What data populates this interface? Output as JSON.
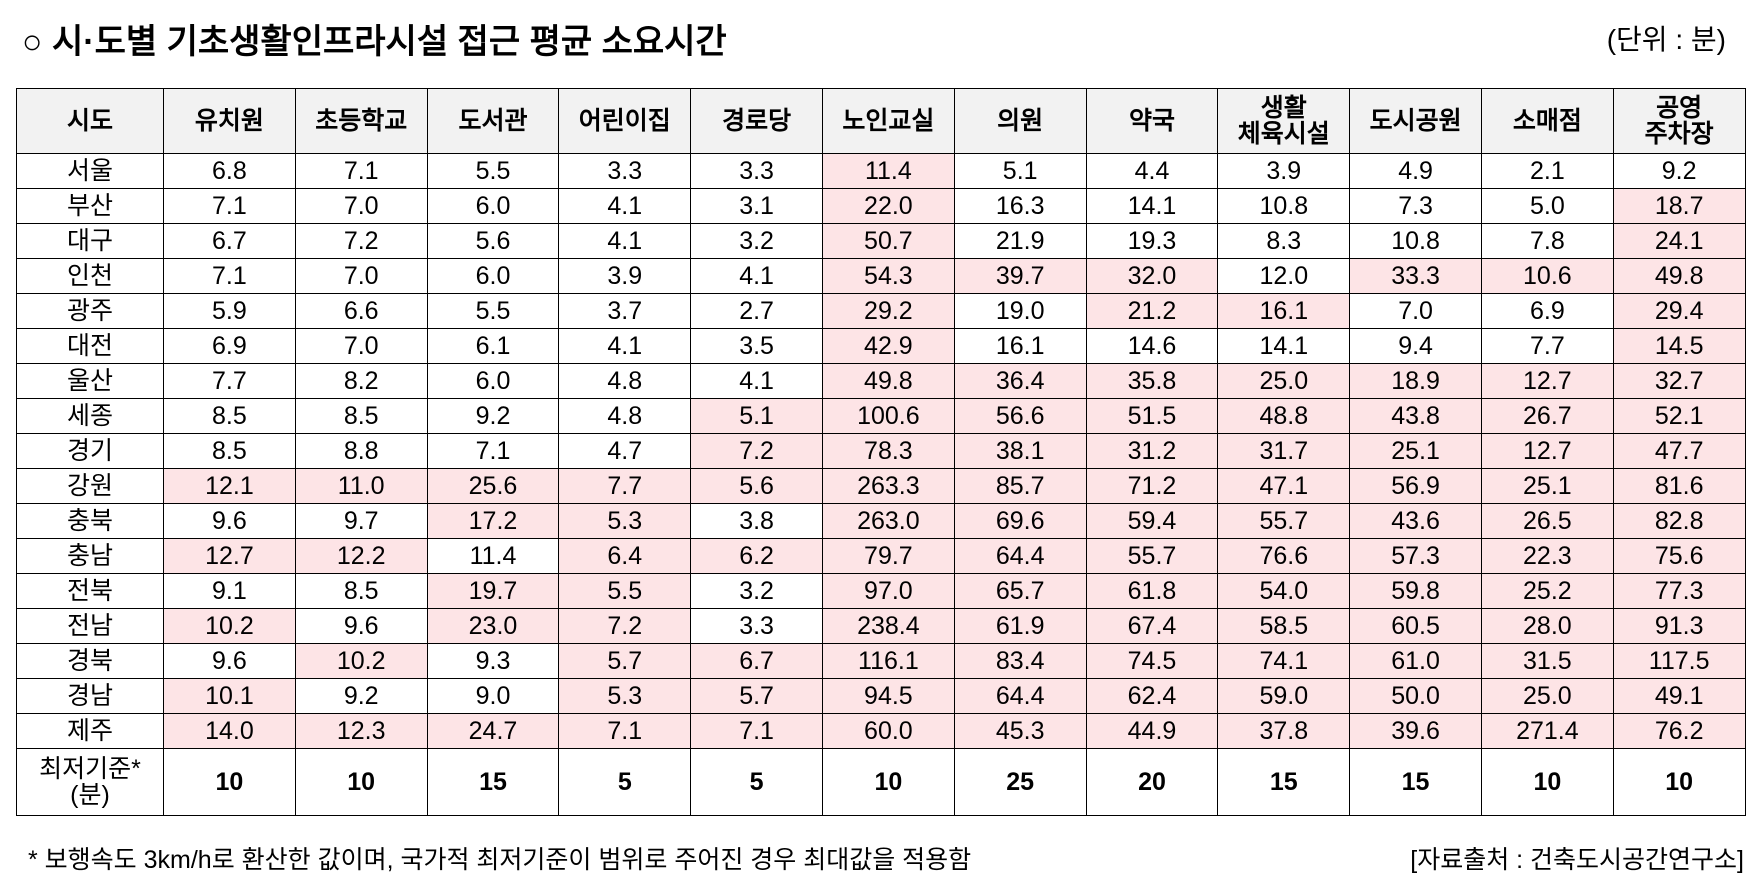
{
  "header": {
    "title": "○ 시·도별 기초생활인프라시설 접근 평균 소요시간",
    "unit": "(단위 : 분)"
  },
  "table": {
    "columns": [
      "시도",
      "유치원",
      "초등학교",
      "도서관",
      "어린이집",
      "경로당",
      "노인교실",
      "의원",
      "약국",
      "생활\n체육시설",
      "도시공원",
      "소매점",
      "공영\n주차장"
    ],
    "rows": [
      [
        "서울",
        "6.8",
        "7.1",
        "5.5",
        "3.3",
        "3.3",
        "11.4",
        "5.1",
        "4.4",
        "3.9",
        "4.9",
        "2.1",
        "9.2"
      ],
      [
        "부산",
        "7.1",
        "7.0",
        "6.0",
        "4.1",
        "3.1",
        "22.0",
        "16.3",
        "14.1",
        "10.8",
        "7.3",
        "5.0",
        "18.7"
      ],
      [
        "대구",
        "6.7",
        "7.2",
        "5.6",
        "4.1",
        "3.2",
        "50.7",
        "21.9",
        "19.3",
        "8.3",
        "10.8",
        "7.8",
        "24.1"
      ],
      [
        "인천",
        "7.1",
        "7.0",
        "6.0",
        "3.9",
        "4.1",
        "54.3",
        "39.7",
        "32.0",
        "12.0",
        "33.3",
        "10.6",
        "49.8"
      ],
      [
        "광주",
        "5.9",
        "6.6",
        "5.5",
        "3.7",
        "2.7",
        "29.2",
        "19.0",
        "21.2",
        "16.1",
        "7.0",
        "6.9",
        "29.4"
      ],
      [
        "대전",
        "6.9",
        "7.0",
        "6.1",
        "4.1",
        "3.5",
        "42.9",
        "16.1",
        "14.6",
        "14.1",
        "9.4",
        "7.7",
        "14.5"
      ],
      [
        "울산",
        "7.7",
        "8.2",
        "6.0",
        "4.8",
        "4.1",
        "49.8",
        "36.4",
        "35.8",
        "25.0",
        "18.9",
        "12.7",
        "32.7"
      ],
      [
        "세종",
        "8.5",
        "8.5",
        "9.2",
        "4.8",
        "5.1",
        "100.6",
        "56.6",
        "51.5",
        "48.8",
        "43.8",
        "26.7",
        "52.1"
      ],
      [
        "경기",
        "8.5",
        "8.8",
        "7.1",
        "4.7",
        "7.2",
        "78.3",
        "38.1",
        "31.2",
        "31.7",
        "25.1",
        "12.7",
        "47.7"
      ],
      [
        "강원",
        "12.1",
        "11.0",
        "25.6",
        "7.7",
        "5.6",
        "263.3",
        "85.7",
        "71.2",
        "47.1",
        "56.9",
        "25.1",
        "81.6"
      ],
      [
        "충북",
        "9.6",
        "9.7",
        "17.2",
        "5.3",
        "3.8",
        "263.0",
        "69.6",
        "59.4",
        "55.7",
        "43.6",
        "26.5",
        "82.8"
      ],
      [
        "충남",
        "12.7",
        "12.2",
        "11.4",
        "6.4",
        "6.2",
        "79.7",
        "64.4",
        "55.7",
        "76.6",
        "57.3",
        "22.3",
        "75.6"
      ],
      [
        "전북",
        "9.1",
        "8.5",
        "19.7",
        "5.5",
        "3.2",
        "97.0",
        "65.7",
        "61.8",
        "54.0",
        "59.8",
        "25.2",
        "77.3"
      ],
      [
        "전남",
        "10.2",
        "9.6",
        "23.0",
        "7.2",
        "3.3",
        "238.4",
        "61.9",
        "67.4",
        "58.5",
        "60.5",
        "28.0",
        "91.3"
      ],
      [
        "경북",
        "9.6",
        "10.2",
        "9.3",
        "5.7",
        "6.7",
        "116.1",
        "83.4",
        "74.5",
        "74.1",
        "61.0",
        "31.5",
        "117.5"
      ],
      [
        "경남",
        "10.1",
        "9.2",
        "9.0",
        "5.3",
        "5.7",
        "94.5",
        "64.4",
        "62.4",
        "59.0",
        "50.0",
        "25.0",
        "49.1"
      ],
      [
        "제주",
        "14.0",
        "12.3",
        "24.7",
        "7.1",
        "7.1",
        "60.0",
        "45.3",
        "44.9",
        "37.8",
        "39.6",
        "271.4",
        "76.2"
      ]
    ],
    "standard": [
      "최저기준*\n(분)",
      10,
      10,
      15,
      5,
      5,
      10,
      25,
      20,
      15,
      15,
      10,
      10
    ],
    "highlight_color": "#fde4e6",
    "header_color": "#f2f2f2"
  },
  "footnote": "* 보행속도 3km/h로 환산한 값이며, 국가적 최저기준이 범위로 주어진 경우 최대값을 적용함",
  "source": "[자료출처 : 건축도시공간연구소]"
}
